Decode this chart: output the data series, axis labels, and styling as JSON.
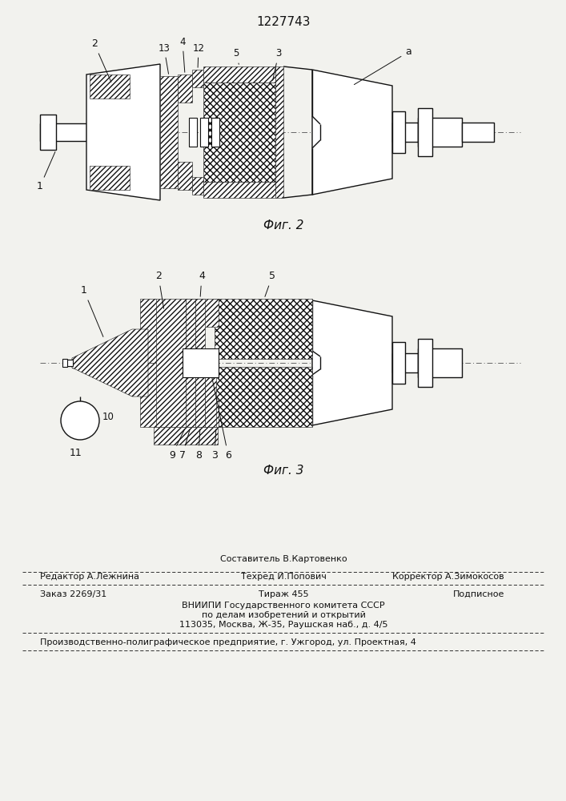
{
  "patent_number": "1227743",
  "bg": "#f2f2ee",
  "lc": "#111111",
  "fig2_caption": "Фиг. 2",
  "fig3_caption": "Фиг. 3",
  "footer": {
    "r1c1": "Редактор А.Лежнина",
    "r1c2a": "Составитель В.Картовенко",
    "r1c2b": "Техред И.Попович",
    "r1c3": "Корректор А.Зимокосов",
    "r2c1": "Заказ 2269/31",
    "r2c2": "Тираж 455",
    "r2c3": "Подписное",
    "vniip1": "ВНИИПИ Государственного комитета СССР",
    "vniip2": "по делам изобретений и открытий",
    "vniip3": "113035, Москва, Ж-35, Раушская наб., д. 4/5",
    "prod": "Производственно-полиграфическое предприятие, г. Ужгород, ул. Проектная, 4"
  }
}
